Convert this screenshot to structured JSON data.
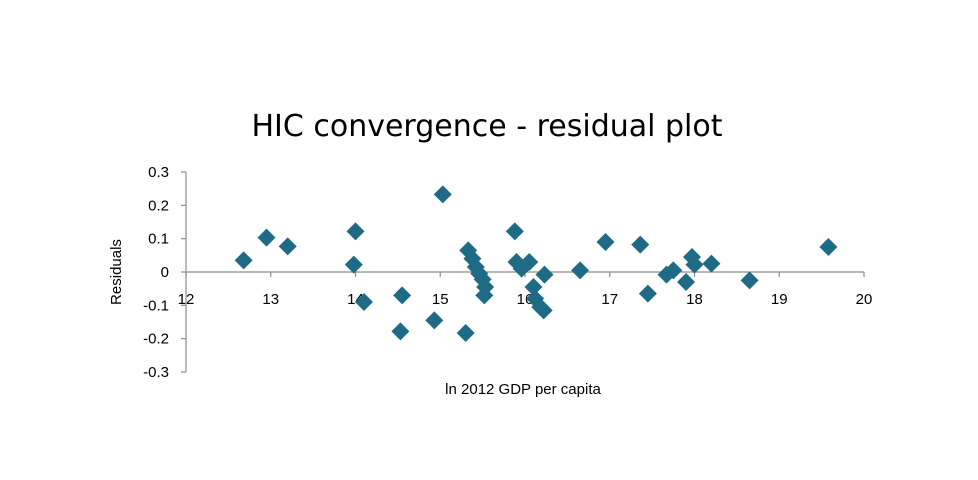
{
  "chart_data": {
    "type": "scatter",
    "title": "HIC convergence - residual plot",
    "xlabel": "ln 2012 GDP per capita",
    "ylabel": "Residuals",
    "xlim": [
      12,
      20
    ],
    "ylim": [
      -0.3,
      0.3
    ],
    "x_ticks": [
      "12",
      "13",
      "14",
      "15",
      "16",
      "17",
      "18",
      "19",
      "20"
    ],
    "y_ticks": [
      "0.3",
      "0.2",
      "0.1",
      "0",
      "-0.1",
      "-0.2",
      "-0.3"
    ],
    "grid": false,
    "legend": "none",
    "marker": "diamond",
    "marker_color": "#1f6b85",
    "points": [
      {
        "x": 12.68,
        "y": 0.035
      },
      {
        "x": 12.95,
        "y": 0.103
      },
      {
        "x": 13.2,
        "y": 0.077
      },
      {
        "x": 14.0,
        "y": 0.122
      },
      {
        "x": 13.98,
        "y": 0.022
      },
      {
        "x": 14.1,
        "y": -0.09
      },
      {
        "x": 14.55,
        "y": -0.07
      },
      {
        "x": 14.53,
        "y": -0.178
      },
      {
        "x": 14.93,
        "y": -0.145
      },
      {
        "x": 15.03,
        "y": 0.233
      },
      {
        "x": 15.3,
        "y": -0.183
      },
      {
        "x": 15.33,
        "y": 0.065
      },
      {
        "x": 15.38,
        "y": 0.04
      },
      {
        "x": 15.42,
        "y": 0.015
      },
      {
        "x": 15.46,
        "y": -0.005
      },
      {
        "x": 15.5,
        "y": -0.022
      },
      {
        "x": 15.53,
        "y": -0.045
      },
      {
        "x": 15.52,
        "y": -0.07
      },
      {
        "x": 15.88,
        "y": 0.122
      },
      {
        "x": 15.9,
        "y": 0.03
      },
      {
        "x": 15.96,
        "y": 0.01
      },
      {
        "x": 16.05,
        "y": 0.03
      },
      {
        "x": 16.1,
        "y": -0.045
      },
      {
        "x": 16.12,
        "y": -0.08
      },
      {
        "x": 16.18,
        "y": -0.105
      },
      {
        "x": 16.22,
        "y": -0.115
      },
      {
        "x": 16.23,
        "y": -0.008
      },
      {
        "x": 16.65,
        "y": 0.005
      },
      {
        "x": 16.95,
        "y": 0.09
      },
      {
        "x": 17.36,
        "y": 0.082
      },
      {
        "x": 17.45,
        "y": -0.065
      },
      {
        "x": 17.67,
        "y": -0.008
      },
      {
        "x": 17.75,
        "y": 0.005
      },
      {
        "x": 17.9,
        "y": -0.03
      },
      {
        "x": 17.97,
        "y": 0.045
      },
      {
        "x": 18.0,
        "y": 0.022
      },
      {
        "x": 18.2,
        "y": 0.025
      },
      {
        "x": 18.65,
        "y": -0.025
      },
      {
        "x": 19.58,
        "y": 0.075
      }
    ]
  }
}
